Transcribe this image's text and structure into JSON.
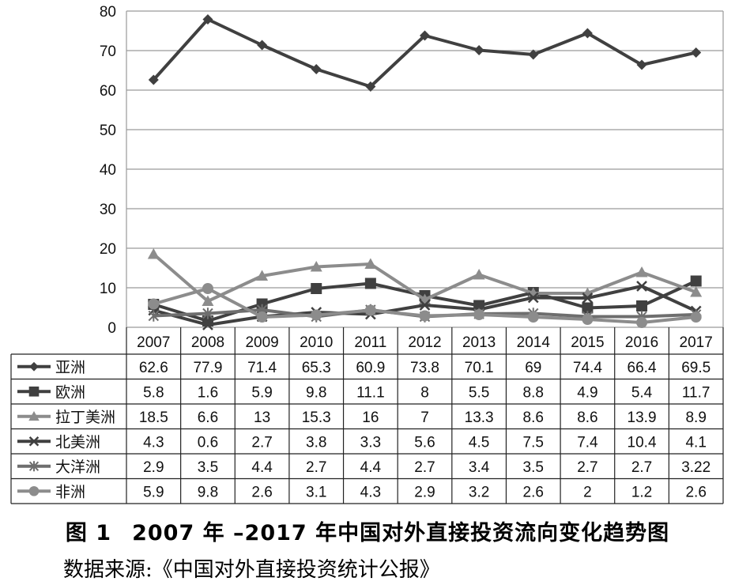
{
  "chart_data": {
    "type": "line",
    "categories": [
      "2007",
      "2008",
      "2009",
      "2010",
      "2011",
      "2012",
      "2013",
      "2014",
      "2015",
      "2016",
      "2017"
    ],
    "ylim": [
      0,
      80
    ],
    "yticks": [
      0,
      10,
      20,
      30,
      40,
      50,
      60,
      70,
      80
    ],
    "grid": true,
    "legend": "data-table-below",
    "series": [
      {
        "name": "亚洲",
        "marker": "diamond",
        "color": "#404040",
        "values": [
          62.6,
          77.9,
          71.4,
          65.3,
          60.9,
          73.8,
          70.1,
          69,
          74.4,
          66.4,
          69.5
        ],
        "labels": [
          "62.6",
          "77.9",
          "71.4",
          "65.3",
          "60.9",
          "73.8",
          "70.1",
          "69",
          "74.4",
          "66.4",
          "69.5"
        ]
      },
      {
        "name": "欧洲",
        "marker": "square",
        "color": "#404040",
        "values": [
          5.8,
          1.6,
          5.9,
          9.8,
          11.1,
          8,
          5.5,
          8.8,
          4.9,
          5.4,
          11.7
        ],
        "labels": [
          "5.8",
          "1.6",
          "5.9",
          "9.8",
          "11.1",
          "8",
          "5.5",
          "8.8",
          "4.9",
          "5.4",
          "11.7"
        ]
      },
      {
        "name": "拉丁美洲",
        "marker": "triangle",
        "color": "#8c8c8c",
        "values": [
          18.5,
          6.6,
          13,
          15.3,
          16,
          7,
          13.3,
          8.6,
          8.6,
          13.9,
          8.9
        ],
        "labels": [
          "18.5",
          "6.6",
          "13",
          "15.3",
          "16",
          "7",
          "13.3",
          "8.6",
          "8.6",
          "13.9",
          "8.9"
        ]
      },
      {
        "name": "北美洲",
        "marker": "x",
        "color": "#404040",
        "values": [
          4.3,
          0.6,
          2.7,
          3.8,
          3.3,
          5.6,
          4.5,
          7.5,
          7.4,
          10.4,
          4.1
        ],
        "labels": [
          "4.3",
          "0.6",
          "2.7",
          "3.8",
          "3.3",
          "5.6",
          "4.5",
          "7.5",
          "7.4",
          "10.4",
          "4.1"
        ]
      },
      {
        "name": "大洋洲",
        "marker": "asterisk",
        "color": "#6e6e6e",
        "values": [
          2.9,
          3.5,
          4.4,
          2.7,
          4.4,
          2.7,
          3.4,
          3.5,
          2.7,
          2.7,
          3.22
        ],
        "labels": [
          "2.9",
          "3.5",
          "4.4",
          "2.7",
          "4.4",
          "2.7",
          "3.4",
          "3.5",
          "2.7",
          "2.7",
          "3.22"
        ]
      },
      {
        "name": "非洲",
        "marker": "circle",
        "color": "#8c8c8c",
        "values": [
          5.9,
          9.8,
          2.6,
          3.1,
          4.3,
          2.9,
          3.2,
          2.6,
          2,
          1.2,
          2.6
        ],
        "labels": [
          "5.9",
          "9.8",
          "2.6",
          "3.1",
          "4.3",
          "2.9",
          "3.2",
          "2.6",
          "2",
          "1.2",
          "2.6"
        ]
      }
    ]
  },
  "caption": {
    "figure_number": "图 1",
    "title": "2007 年 –2017 年中国对外直接投资流向变化趋势图",
    "source": "数据来源:《中国对外直接投资统计公报》"
  }
}
